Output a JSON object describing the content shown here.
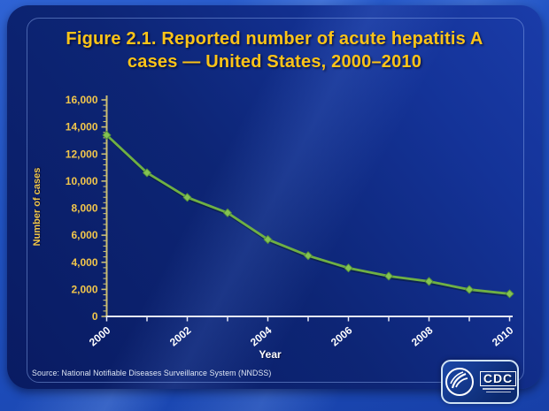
{
  "slide": {
    "title_lines": [
      "Figure 2.1. Reported number of acute hepatitis A",
      "cases — United States, 2000–2010"
    ],
    "source": "Source: National Notifiable Diseases Surveillance System (NNDSS)",
    "logo": {
      "cdc_label": "CDC",
      "seal": "hhs-seal-icon"
    }
  },
  "chart_data": {
    "type": "line",
    "title": "Figure 2.1. Reported number of acute hepatitis A cases — United States, 2000–2010",
    "x": [
      2000,
      2001,
      2002,
      2003,
      2004,
      2005,
      2006,
      2007,
      2008,
      2009,
      2010
    ],
    "series": [
      {
        "name": "Reported acute hepatitis A cases",
        "values": [
          13397,
          10616,
          8795,
          7653,
          5683,
          4488,
          3579,
          2979,
          2585,
          1987,
          1670
        ]
      }
    ],
    "xlabel": "Year",
    "ylabel": "Number of cases",
    "ylim": [
      0,
      16000
    ],
    "ytick_step": 2000,
    "y_minor_step": 400,
    "ytick_labels": [
      "0",
      "2,000",
      "4,000",
      "6,000",
      "8,000",
      "10,000",
      "12,000",
      "14,000",
      "16,000"
    ],
    "xtick_labels": [
      "2000",
      "",
      "2002",
      "",
      "2004",
      "",
      "2006",
      "",
      "2008",
      "",
      "2010"
    ],
    "grid": false,
    "legend": "none",
    "marker": "diamond",
    "colors": {
      "title": "#fcc418",
      "line": "#6fb044",
      "marker": "#84c253",
      "marker_edge": "#55933a",
      "axis_y": "#c9bd74",
      "axis_x": "#e6e9f3",
      "ytick_text": "#f2c64b",
      "xtick_text": "#ffffff"
    }
  }
}
